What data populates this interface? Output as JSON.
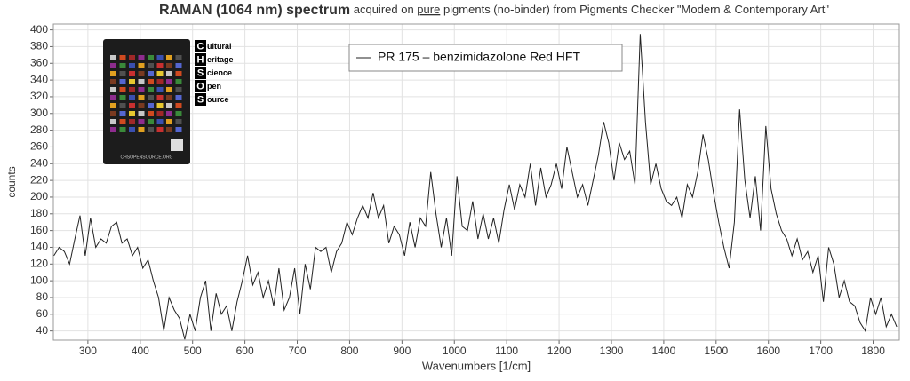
{
  "chart_data": {
    "type": "line",
    "title_parts": [
      {
        "text": "RAMAN (1064 nm) spectrum",
        "style": "bold"
      },
      {
        "text": " acquired on ",
        "style": "normal"
      },
      {
        "text": "pure",
        "style": "underline"
      },
      {
        "text": " pigments (no-binder) from Pigments Checker \"Modern & Contemporary Art\"",
        "style": "normal"
      }
    ],
    "xlabel": "Wavenumbers [1/cm]",
    "ylabel": "counts",
    "xlim": [
      234,
      1850
    ],
    "ylim": [
      29,
      407
    ],
    "xticks": [
      300,
      400,
      500,
      600,
      700,
      800,
      900,
      1000,
      1100,
      1200,
      1300,
      1400,
      1500,
      1600,
      1700,
      1800
    ],
    "yticks": [
      40,
      60,
      80,
      100,
      120,
      140,
      160,
      180,
      200,
      220,
      240,
      260,
      280,
      300,
      320,
      340,
      360,
      380,
      400
    ],
    "grid": true,
    "legend": "top",
    "x": [
      235,
      245,
      255,
      265,
      275,
      285,
      295,
      305,
      315,
      325,
      335,
      345,
      355,
      365,
      375,
      385,
      395,
      405,
      415,
      425,
      435,
      445,
      455,
      465,
      475,
      485,
      495,
      505,
      515,
      525,
      535,
      545,
      555,
      565,
      575,
      585,
      595,
      605,
      615,
      625,
      635,
      645,
      655,
      665,
      675,
      685,
      695,
      705,
      715,
      725,
      735,
      745,
      755,
      765,
      775,
      785,
      795,
      805,
      815,
      825,
      835,
      845,
      855,
      865,
      875,
      885,
      895,
      905,
      915,
      925,
      935,
      945,
      955,
      965,
      975,
      985,
      995,
      1005,
      1015,
      1025,
      1035,
      1045,
      1055,
      1065,
      1075,
      1085,
      1095,
      1105,
      1115,
      1125,
      1135,
      1145,
      1155,
      1165,
      1175,
      1185,
      1195,
      1205,
      1215,
      1225,
      1235,
      1245,
      1255,
      1265,
      1275,
      1285,
      1295,
      1305,
      1315,
      1325,
      1335,
      1345,
      1355,
      1365,
      1375,
      1385,
      1395,
      1405,
      1415,
      1425,
      1435,
      1445,
      1455,
      1465,
      1475,
      1485,
      1495,
      1505,
      1515,
      1525,
      1535,
      1545,
      1555,
      1565,
      1575,
      1585,
      1595,
      1605,
      1615,
      1625,
      1635,
      1645,
      1655,
      1665,
      1675,
      1685,
      1695,
      1705,
      1715,
      1725,
      1735,
      1745,
      1755,
      1765,
      1775,
      1785,
      1795,
      1805,
      1815,
      1825,
      1835,
      1845
    ],
    "series": [
      {
        "name": "PR 175 – benzimidazolone Red HFT",
        "color": "#222222",
        "values": [
          130,
          140,
          135,
          120,
          150,
          178,
          130,
          175,
          140,
          150,
          145,
          165,
          170,
          145,
          150,
          130,
          140,
          115,
          125,
          100,
          80,
          40,
          80,
          65,
          55,
          30,
          60,
          40,
          80,
          100,
          40,
          85,
          60,
          70,
          40,
          75,
          100,
          130,
          95,
          110,
          80,
          100,
          70,
          115,
          65,
          80,
          115,
          60,
          120,
          90,
          140,
          135,
          140,
          110,
          135,
          145,
          170,
          155,
          175,
          190,
          175,
          205,
          175,
          190,
          145,
          165,
          155,
          130,
          170,
          140,
          175,
          165,
          230,
          180,
          140,
          175,
          130,
          225,
          165,
          160,
          195,
          150,
          180,
          150,
          175,
          145,
          185,
          215,
          185,
          215,
          200,
          240,
          190,
          235,
          200,
          215,
          240,
          210,
          260,
          230,
          200,
          215,
          190,
          220,
          250,
          290,
          265,
          220,
          265,
          245,
          255,
          215,
          395,
          290,
          215,
          240,
          210,
          195,
          190,
          200,
          175,
          215,
          200,
          230,
          275,
          245,
          205,
          170,
          140,
          115,
          170,
          305,
          220,
          175,
          225,
          160,
          285,
          210,
          180,
          160,
          150,
          130,
          150,
          125,
          135,
          110,
          130,
          75,
          140,
          120,
          80,
          100,
          75,
          70,
          50,
          40,
          80,
          60,
          80,
          45,
          60,
          45
        ]
      }
    ],
    "inset": {
      "logo_letters": [
        "C",
        "H",
        "S",
        "O",
        "S"
      ],
      "logo_words": [
        "ultural",
        "eritage",
        "cience",
        "pen",
        "ource"
      ],
      "caption": "CHSOPENSOURCE.ORG"
    }
  }
}
